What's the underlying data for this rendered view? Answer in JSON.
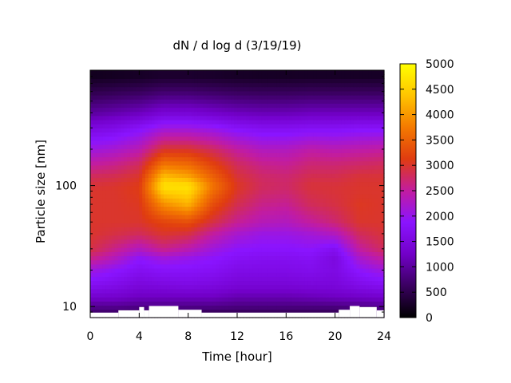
{
  "chart_data": {
    "type": "heatmap",
    "title": "dN / d log d (3/19/19)",
    "xlabel": "Time [hour]",
    "ylabel": "Particle size [nm]",
    "x_range": [
      0,
      24
    ],
    "y_range": [
      8.1,
      900
    ],
    "y_scale": "log",
    "x_ticks": [
      0,
      4,
      8,
      12,
      16,
      20,
      24
    ],
    "x_tick_labels": [
      "0",
      "4",
      "8",
      "12",
      "16",
      "20",
      "24"
    ],
    "y_ticks": [
      10,
      100
    ],
    "y_tick_labels": [
      "10",
      "100"
    ],
    "colorbar": {
      "range": [
        0,
        5000
      ],
      "ticks": [
        0,
        500,
        1000,
        1500,
        2000,
        2500,
        3000,
        3500,
        4000,
        4500,
        5000
      ],
      "tick_labels": [
        "0",
        "500",
        "1000",
        "1500",
        "2000",
        "2500",
        "3000",
        "3500",
        "4000",
        "4500",
        "5000"
      ],
      "palette": [
        "#000000",
        "#3a0060",
        "#7200c8",
        "#8a14ff",
        "#c21ca0",
        "#e03c10",
        "#f47a00",
        "#ffc400",
        "#ffff00"
      ]
    },
    "grid": false,
    "legend": "none",
    "hours": [
      0,
      2,
      4,
      6,
      8,
      10,
      12,
      14,
      16,
      18,
      20,
      22,
      24
    ],
    "sizes_nm": [
      9,
      10,
      12,
      15,
      20,
      25,
      30,
      40,
      50,
      70,
      90,
      100,
      120,
      150,
      200,
      300,
      400,
      600,
      800
    ],
    "values": [
      [
        700,
        700,
        600,
        600,
        600,
        600,
        600,
        600,
        600,
        600,
        600,
        650,
        700
      ],
      [
        900,
        900,
        850,
        850,
        850,
        850,
        800,
        800,
        800,
        800,
        800,
        850,
        900
      ],
      [
        1300,
        1300,
        1200,
        1200,
        1200,
        1200,
        1100,
        1100,
        1100,
        1150,
        1200,
        1250,
        1300
      ],
      [
        1700,
        1600,
        1450,
        1500,
        1550,
        1500,
        1400,
        1400,
        1400,
        1450,
        1450,
        1600,
        1700
      ],
      [
        2100,
        1900,
        1700,
        1800,
        1800,
        1750,
        1600,
        1600,
        1600,
        1650,
        1550,
        1900,
        2100
      ],
      [
        2600,
        2300,
        1900,
        2100,
        2000,
        1900,
        1750,
        1700,
        1700,
        1750,
        1500,
        2200,
        2500
      ],
      [
        2900,
        2600,
        2300,
        2600,
        2400,
        2100,
        1900,
        1850,
        1850,
        1900,
        1700,
        2500,
        2800
      ],
      [
        3000,
        2900,
        2800,
        3000,
        2900,
        2500,
        2200,
        2050,
        2050,
        2150,
        2300,
        2800,
        2950
      ],
      [
        3000,
        3000,
        3000,
        3200,
        3300,
        2900,
        2550,
        2350,
        2300,
        2500,
        2700,
        3000,
        3000
      ],
      [
        3000,
        3000,
        3050,
        3900,
        4200,
        3300,
        2850,
        2600,
        2550,
        2800,
        2900,
        3050,
        3000
      ],
      [
        3000,
        3000,
        3100,
        4500,
        4600,
        3600,
        3000,
        2750,
        2700,
        2900,
        2950,
        3000,
        3000
      ],
      [
        2950,
        3000,
        3100,
        4700,
        4700,
        3700,
        3050,
        2800,
        2750,
        2950,
        2950,
        3000,
        3000
      ],
      [
        2800,
        2850,
        3000,
        4300,
        4100,
        3500,
        2950,
        2750,
        2700,
        2850,
        2850,
        2950,
        2950
      ],
      [
        2500,
        2600,
        2800,
        3700,
        3600,
        3200,
        2800,
        2600,
        2550,
        2700,
        2700,
        2750,
        2800
      ],
      [
        2100,
        2200,
        2400,
        3000,
        3000,
        2800,
        2500,
        2300,
        2300,
        2450,
        2400,
        2450,
        2500
      ],
      [
        1500,
        1600,
        1800,
        2100,
        2100,
        2000,
        1800,
        1700,
        1700,
        1750,
        1750,
        1800,
        1800
      ],
      [
        1000,
        1100,
        1200,
        1400,
        1400,
        1300,
        1200,
        1150,
        1150,
        1200,
        1200,
        1200,
        1200
      ],
      [
        500,
        550,
        600,
        700,
        700,
        650,
        600,
        580,
        580,
        600,
        600,
        600,
        600
      ],
      [
        200,
        220,
        250,
        300,
        300,
        280,
        250,
        240,
        240,
        250,
        250,
        250,
        250
      ]
    ],
    "missing_low_size": [
      {
        "from": 0,
        "to": 2.3,
        "upto_nm": 8.9
      },
      {
        "from": 2.3,
        "to": 4.0,
        "upto_nm": 9.3
      },
      {
        "from": 4.0,
        "to": 4.4,
        "upto_nm": 9.9
      },
      {
        "from": 4.4,
        "to": 4.8,
        "upto_nm": 9.3
      },
      {
        "from": 4.8,
        "to": 7.2,
        "upto_nm": 10.1
      },
      {
        "from": 7.2,
        "to": 9.1,
        "upto_nm": 9.4
      },
      {
        "from": 9.1,
        "to": 20.3,
        "upto_nm": 8.9
      },
      {
        "from": 20.3,
        "to": 21.2,
        "upto_nm": 9.4
      },
      {
        "from": 21.2,
        "to": 22.0,
        "upto_nm": 10.1
      },
      {
        "from": 22.0,
        "to": 23.4,
        "upto_nm": 9.9
      },
      {
        "from": 23.4,
        "to": 24,
        "upto_nm": 9.3
      }
    ]
  }
}
